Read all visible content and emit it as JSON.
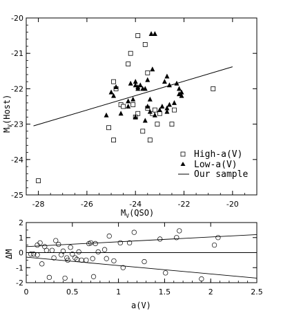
{
  "chart_data": [
    {
      "type": "scatter",
      "xlabel_main": "M",
      "xlabel_sub": "V",
      "xlabel_rest": "(QSO)",
      "ylabel_main": "M",
      "ylabel_sub": "V",
      "ylabel_rest": "(Host)",
      "xlim": [
        -28.5,
        -19.0
      ],
      "ylim": [
        -20.0,
        -25.0
      ],
      "x_ticks": [
        -28,
        -26,
        -24,
        -22,
        -20
      ],
      "y_ticks": [
        -20,
        -21,
        -22,
        -23,
        -24,
        -25
      ],
      "legend_position": "bottom-right",
      "legend": [
        {
          "label": "High-a(V)",
          "marker": "square-open"
        },
        {
          "label": "Low-a(V)",
          "marker": "triangle-filled"
        },
        {
          "label": "Our sample",
          "marker": "line"
        }
      ],
      "series": [
        {
          "name": "High-a(V)",
          "marker": "square-open",
          "x": [
            -23.9,
            -23.6,
            -24.2,
            -24.3,
            -23.5,
            -24.9,
            -24.8,
            -24.6,
            -24.5,
            -24.1,
            -23.9,
            -24.0,
            -23.7,
            -23.4,
            -23.1,
            -23.0,
            -23.5,
            -23.3,
            -22.4,
            -22.5,
            -25.1,
            -24.9,
            -20.8,
            -28.0,
            -23.2
          ],
          "y": [
            -20.5,
            -20.75,
            -21.0,
            -21.3,
            -21.55,
            -21.8,
            -22.0,
            -22.45,
            -22.5,
            -22.45,
            -22.7,
            -22.8,
            -23.2,
            -23.45,
            -23.0,
            -22.7,
            -22.55,
            -22.7,
            -22.6,
            -23.0,
            -23.1,
            -23.45,
            -22.0,
            -24.6,
            -22.6
          ]
        },
        {
          "name": "Low-a(V)",
          "marker": "triangle-filled",
          "x": [
            -23.35,
            -23.2,
            -23.3,
            -22.7,
            -23.5,
            -24.0,
            -24.2,
            -24.0,
            -23.8,
            -23.9,
            -23.6,
            -23.4,
            -23.5,
            -22.8,
            -22.6,
            -22.7,
            -22.2,
            -22.1,
            -22.4,
            -22.6,
            -22.7,
            -22.3,
            -22.1,
            -22.2,
            -24.3,
            -24.6,
            -24.9,
            -25.0,
            -25.2,
            -23.7,
            -23.9,
            -24.1,
            -23.4,
            -23.6,
            -23.2,
            -24.0,
            -24.8,
            -23.0,
            -22.9,
            -24.3
          ],
          "y": [
            -20.45,
            -20.45,
            -21.45,
            -21.65,
            -21.75,
            -21.8,
            -21.85,
            -21.9,
            -21.9,
            -22.0,
            -22.0,
            -22.3,
            -22.5,
            -21.8,
            -21.9,
            -22.65,
            -22.0,
            -22.2,
            -22.4,
            -22.45,
            -22.55,
            -21.85,
            -22.1,
            -22.15,
            -22.35,
            -22.7,
            -22.2,
            -22.1,
            -22.75,
            -22.0,
            -21.95,
            -22.3,
            -22.65,
            -22.9,
            -22.75,
            -22.8,
            -21.95,
            -22.6,
            -22.5,
            -22.5
          ]
        }
      ],
      "fit_line": {
        "name": "Our sample",
        "x": [
          -28.2,
          -20.0
        ],
        "y": [
          -23.05,
          -21.38
        ]
      }
    },
    {
      "type": "scatter",
      "xlabel": "a(V)",
      "ylabel": "ΔM",
      "xlim": [
        0,
        2.5
      ],
      "ylim": [
        -2,
        2
      ],
      "x_ticks": [
        0,
        0.5,
        1,
        1.5,
        2,
        2.5
      ],
      "x_tick_labels": [
        "0",
        "0.5",
        "1",
        "1.5",
        "2",
        "2.5"
      ],
      "y_ticks": [
        2,
        1,
        0,
        -1,
        -2
      ],
      "series": [
        {
          "name": "",
          "marker": "circle-open",
          "x": [
            0.05,
            0.08,
            0.12,
            0.12,
            0.15,
            0.17,
            0.2,
            0.22,
            0.25,
            0.28,
            0.3,
            0.32,
            0.35,
            0.38,
            0.4,
            0.42,
            0.44,
            0.45,
            0.48,
            0.5,
            0.53,
            0.55,
            0.57,
            0.6,
            0.65,
            0.68,
            0.7,
            0.72,
            0.73,
            0.75,
            0.78,
            0.85,
            0.87,
            0.9,
            0.95,
            1.02,
            1.05,
            1.12,
            1.17,
            1.28,
            1.45,
            1.51,
            1.63,
            1.66,
            1.9,
            2.04,
            2.08
          ],
          "y": [
            -0.1,
            -0.1,
            0.5,
            -0.15,
            0.65,
            -0.75,
            0.4,
            0.15,
            -1.65,
            0.15,
            -0.35,
            0.8,
            0.55,
            -0.15,
            0.1,
            -1.7,
            -0.35,
            -0.5,
            0.35,
            -0.1,
            -0.35,
            -0.45,
            0.05,
            -0.5,
            -0.5,
            0.6,
            0.65,
            -0.4,
            -1.6,
            0.6,
            0.05,
            0.2,
            -0.4,
            1.1,
            -0.55,
            0.65,
            -1.0,
            0.65,
            1.35,
            -0.6,
            0.9,
            -1.35,
            1.0,
            1.45,
            -1.75,
            0.5,
            1.0
          ]
        }
      ],
      "ref_lines": [
        {
          "name": "zero",
          "x": [
            0,
            2.5
          ],
          "y": [
            0,
            0
          ]
        },
        {
          "name": "upper",
          "x": [
            0,
            2.5
          ],
          "y": [
            0.4,
            1.2
          ]
        },
        {
          "name": "lower",
          "x": [
            0,
            2.5
          ],
          "y": [
            -0.3,
            -1.7
          ]
        }
      ]
    }
  ]
}
